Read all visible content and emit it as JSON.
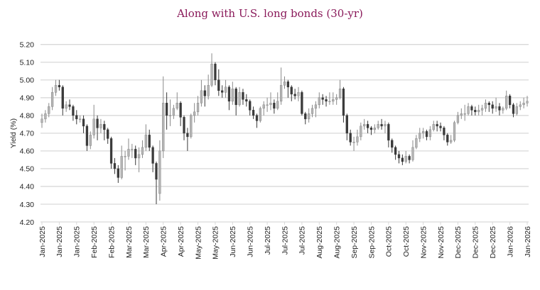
{
  "chart_data": {
    "type": "candlestick",
    "title": "Along with U.S. long bonds (30-yr)",
    "xlabel": "",
    "ylabel": "Yield (%)",
    "ylim": [
      4.2,
      5.2
    ],
    "yticks": [
      "4.20",
      "4.30",
      "4.40",
      "4.50",
      "4.60",
      "4.70",
      "4.80",
      "4.90",
      "5.00",
      "5.10",
      "5.20"
    ],
    "xticks": [
      "Jan-2025",
      "Jan-2025",
      "Jan-2025",
      "Feb-2025",
      "Feb-2025",
      "Mar-2025",
      "Mar-2025",
      "Apr-2025",
      "Apr-2025",
      "May-2025",
      "May-2025",
      "Jun-2025",
      "Jun-2025",
      "Jul-2025",
      "Jul-2025",
      "Jul-2025",
      "Aug-2025",
      "Aug-2025",
      "Sep-2025",
      "Sep-2025",
      "Oct-2025",
      "Oct-2025",
      "Nov-2025",
      "Nov-2025",
      "Dec-2025",
      "Dec-2025",
      "Dec-2025",
      "Jan-2026",
      "Jan-2026"
    ],
    "grid": true,
    "legend": "none",
    "colors": {
      "up": "#b5b5b5",
      "down": "#3a3a3a",
      "grid": "#d9d9d9",
      "title": "#8a1a5a"
    },
    "ohlc_fields": [
      "open",
      "high",
      "low",
      "close"
    ],
    "ohlc": [
      [
        4.76,
        4.81,
        4.73,
        4.78
      ],
      [
        4.78,
        4.83,
        4.76,
        4.81
      ],
      [
        4.81,
        4.87,
        4.79,
        4.85
      ],
      [
        4.85,
        4.96,
        4.83,
        4.93
      ],
      [
        4.93,
        5.0,
        4.91,
        4.97
      ],
      [
        4.97,
        5.0,
        4.94,
        4.96
      ],
      [
        4.96,
        4.97,
        4.8,
        4.84
      ],
      [
        4.84,
        4.88,
        4.82,
        4.86
      ],
      [
        4.86,
        4.89,
        4.83,
        4.85
      ],
      [
        4.85,
        4.86,
        4.77,
        4.8
      ],
      [
        4.8,
        4.83,
        4.75,
        4.78
      ],
      [
        4.78,
        4.8,
        4.76,
        4.78
      ],
      [
        4.78,
        4.8,
        4.7,
        4.74
      ],
      [
        4.74,
        4.75,
        4.6,
        4.63
      ],
      [
        4.63,
        4.71,
        4.61,
        4.69
      ],
      [
        4.69,
        4.86,
        4.67,
        4.78
      ],
      [
        4.78,
        4.8,
        4.66,
        4.73
      ],
      [
        4.73,
        4.78,
        4.7,
        4.75
      ],
      [
        4.75,
        4.77,
        4.66,
        4.72
      ],
      [
        4.72,
        4.73,
        4.64,
        4.67
      ],
      [
        4.67,
        4.68,
        4.5,
        4.53
      ],
      [
        4.53,
        4.56,
        4.47,
        4.5
      ],
      [
        4.5,
        4.52,
        4.42,
        4.45
      ],
      [
        4.45,
        4.63,
        4.44,
        4.57
      ],
      [
        4.57,
        4.6,
        4.49,
        4.57
      ],
      [
        4.57,
        4.67,
        4.55,
        4.61
      ],
      [
        4.61,
        4.64,
        4.56,
        4.61
      ],
      [
        4.61,
        4.63,
        4.52,
        4.56
      ],
      [
        4.56,
        4.62,
        4.48,
        4.58
      ],
      [
        4.58,
        4.66,
        4.56,
        4.62
      ],
      [
        4.62,
        4.75,
        4.6,
        4.69
      ],
      [
        4.69,
        4.72,
        4.6,
        4.62
      ],
      [
        4.62,
        4.63,
        4.48,
        4.53
      ],
      [
        4.53,
        4.54,
        4.3,
        4.44
      ],
      [
        4.36,
        4.66,
        4.32,
        4.6
      ],
      [
        4.6,
        5.02,
        4.56,
        4.87
      ],
      [
        4.87,
        4.93,
        4.72,
        4.8
      ],
      [
        4.8,
        4.89,
        4.74,
        4.8
      ],
      [
        4.8,
        4.86,
        4.78,
        4.84
      ],
      [
        4.84,
        4.93,
        4.83,
        4.87
      ],
      [
        4.87,
        4.88,
        4.74,
        4.79
      ],
      [
        4.79,
        4.8,
        4.66,
        4.7
      ],
      [
        4.7,
        4.73,
        4.6,
        4.68
      ],
      [
        4.68,
        4.81,
        4.67,
        4.8
      ],
      [
        4.8,
        4.87,
        4.76,
        4.82
      ],
      [
        4.82,
        4.91,
        4.8,
        4.87
      ],
      [
        4.87,
        5.0,
        4.85,
        4.94
      ],
      [
        4.94,
        4.97,
        4.85,
        4.91
      ],
      [
        4.91,
        5.03,
        4.89,
        4.97
      ],
      [
        4.97,
        5.15,
        4.96,
        5.09
      ],
      [
        5.09,
        5.1,
        4.97,
        5.0
      ],
      [
        5.0,
        5.06,
        4.91,
        4.94
      ],
      [
        4.94,
        4.97,
        4.9,
        4.93
      ],
      [
        4.93,
        5.0,
        4.9,
        4.96
      ],
      [
        4.96,
        4.97,
        4.83,
        4.88
      ],
      [
        4.88,
        4.99,
        4.86,
        4.95
      ],
      [
        4.95,
        4.96,
        4.8,
        4.86
      ],
      [
        4.86,
        4.96,
        4.85,
        4.93
      ],
      [
        4.93,
        4.95,
        4.86,
        4.89
      ],
      [
        4.89,
        4.92,
        4.85,
        4.88
      ],
      [
        4.88,
        4.89,
        4.8,
        4.83
      ],
      [
        4.83,
        4.85,
        4.78,
        4.8
      ],
      [
        4.8,
        4.81,
        4.73,
        4.77
      ],
      [
        4.77,
        4.85,
        4.76,
        4.84
      ],
      [
        4.84,
        4.88,
        4.8,
        4.86
      ],
      [
        4.86,
        4.9,
        4.82,
        4.86
      ],
      [
        4.86,
        4.93,
        4.83,
        4.87
      ],
      [
        4.87,
        4.89,
        4.81,
        4.84
      ],
      [
        4.84,
        4.93,
        4.83,
        4.88
      ],
      [
        4.88,
        5.07,
        4.86,
        4.97
      ],
      [
        4.97,
        5.02,
        4.95,
        4.99
      ],
      [
        4.99,
        5.0,
        4.9,
        4.96
      ],
      [
        4.96,
        4.97,
        4.88,
        4.92
      ],
      [
        4.92,
        4.95,
        4.89,
        4.91
      ],
      [
        4.91,
        4.96,
        4.88,
        4.93
      ],
      [
        4.93,
        4.94,
        4.8,
        4.81
      ],
      [
        4.81,
        4.82,
        4.75,
        4.78
      ],
      [
        4.78,
        4.84,
        4.76,
        4.81
      ],
      [
        4.81,
        4.86,
        4.79,
        4.84
      ],
      [
        4.84,
        4.88,
        4.79,
        4.86
      ],
      [
        4.86,
        4.93,
        4.84,
        4.9
      ],
      [
        4.9,
        4.92,
        4.86,
        4.89
      ],
      [
        4.89,
        4.91,
        4.85,
        4.88
      ],
      [
        4.88,
        4.93,
        4.86,
        4.88
      ],
      [
        4.88,
        4.93,
        4.86,
        4.89
      ],
      [
        4.89,
        4.92,
        4.86,
        4.9
      ],
      [
        4.9,
        5.0,
        4.89,
        4.95
      ],
      [
        4.95,
        4.96,
        4.76,
        4.8
      ],
      [
        4.8,
        4.81,
        4.66,
        4.7
      ],
      [
        4.7,
        4.72,
        4.63,
        4.65
      ],
      [
        4.65,
        4.68,
        4.6,
        4.65
      ],
      [
        4.65,
        4.72,
        4.63,
        4.68
      ],
      [
        4.68,
        4.76,
        4.66,
        4.74
      ],
      [
        4.74,
        4.78,
        4.72,
        4.75
      ],
      [
        4.75,
        4.77,
        4.7,
        4.73
      ],
      [
        4.73,
        4.74,
        4.69,
        4.72
      ],
      [
        4.72,
        4.75,
        4.7,
        4.73
      ],
      [
        4.73,
        4.77,
        4.72,
        4.75
      ],
      [
        4.75,
        4.78,
        4.72,
        4.74
      ],
      [
        4.74,
        4.77,
        4.7,
        4.75
      ],
      [
        4.75,
        4.76,
        4.62,
        4.66
      ],
      [
        4.66,
        4.67,
        4.59,
        4.62
      ],
      [
        4.62,
        4.63,
        4.55,
        4.58
      ],
      [
        4.58,
        4.6,
        4.53,
        4.56
      ],
      [
        4.56,
        4.58,
        4.52,
        4.54
      ],
      [
        4.54,
        4.6,
        4.53,
        4.57
      ],
      [
        4.57,
        4.58,
        4.53,
        4.55
      ],
      [
        4.55,
        4.66,
        4.54,
        4.62
      ],
      [
        4.62,
        4.69,
        4.61,
        4.67
      ],
      [
        4.67,
        4.73,
        4.65,
        4.7
      ],
      [
        4.7,
        4.73,
        4.67,
        4.71
      ],
      [
        4.71,
        4.72,
        4.66,
        4.68
      ],
      [
        4.68,
        4.74,
        4.66,
        4.72
      ],
      [
        4.72,
        4.77,
        4.71,
        4.75
      ],
      [
        4.75,
        4.77,
        4.71,
        4.74
      ],
      [
        4.74,
        4.76,
        4.71,
        4.73
      ],
      [
        4.73,
        4.74,
        4.66,
        4.69
      ],
      [
        4.69,
        4.7,
        4.63,
        4.65
      ],
      [
        4.65,
        4.69,
        4.64,
        4.66
      ],
      [
        4.66,
        4.77,
        4.65,
        4.76
      ],
      [
        4.76,
        4.82,
        4.75,
        4.8
      ],
      [
        4.8,
        4.84,
        4.78,
        4.81
      ],
      [
        4.81,
        4.86,
        4.77,
        4.81
      ],
      [
        4.81,
        4.87,
        4.8,
        4.85
      ],
      [
        4.85,
        4.86,
        4.8,
        4.83
      ],
      [
        4.83,
        4.85,
        4.8,
        4.82
      ],
      [
        4.82,
        4.86,
        4.8,
        4.83
      ],
      [
        4.83,
        4.86,
        4.8,
        4.84
      ],
      [
        4.84,
        4.89,
        4.82,
        4.87
      ],
      [
        4.87,
        4.88,
        4.82,
        4.86
      ],
      [
        4.86,
        4.88,
        4.81,
        4.84
      ],
      [
        4.84,
        4.9,
        4.82,
        4.85
      ],
      [
        4.85,
        4.87,
        4.8,
        4.83
      ],
      [
        4.83,
        4.85,
        4.81,
        4.84
      ],
      [
        4.84,
        4.94,
        4.83,
        4.91
      ],
      [
        4.91,
        4.92,
        4.84,
        4.86
      ],
      [
        4.86,
        4.87,
        4.79,
        4.81
      ],
      [
        4.81,
        4.87,
        4.8,
        4.85
      ],
      [
        4.85,
        4.88,
        4.83,
        4.86
      ],
      [
        4.86,
        4.9,
        4.84,
        4.87
      ],
      [
        4.87,
        4.91,
        4.85,
        4.88
      ]
    ]
  }
}
